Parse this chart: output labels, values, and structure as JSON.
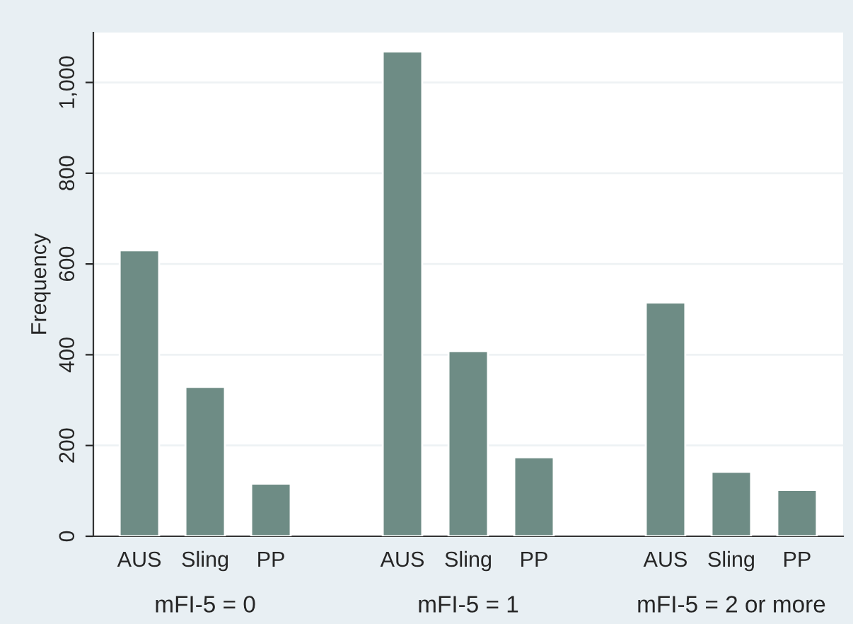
{
  "chart_data": {
    "type": "bar",
    "ylabel": "Frequency",
    "categories": [
      "AUS",
      "Sling",
      "PP",
      null,
      "AUS",
      "Sling",
      "PP",
      null,
      "AUS",
      "Sling",
      "PP"
    ],
    "values": [
      630,
      329,
      116,
      null,
      1068,
      408,
      174,
      null,
      515,
      142,
      102
    ],
    "color": "#6e8c85",
    "annotations": [
      "mFI-5 = 0",
      "mFI-5 = 1",
      "mFI-5 = 2 or more"
    ],
    "ylim": [
      0,
      1110
    ],
    "yticks": [
      0,
      200,
      400,
      600,
      800,
      {
        "value": 1000,
        "label": "1,000"
      }
    ],
    "grid": "y",
    "legend": false
  }
}
